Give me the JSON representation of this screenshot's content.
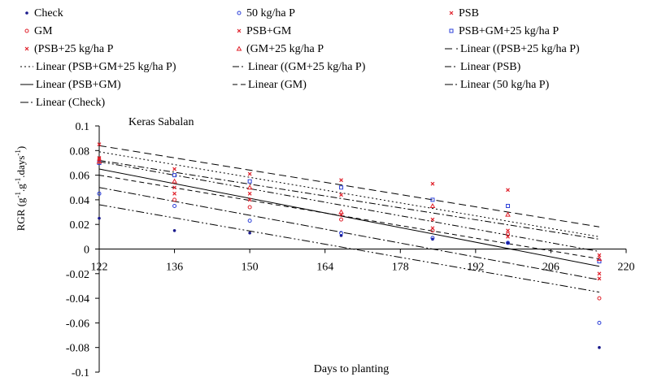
{
  "chart_data": {
    "type": "scatter",
    "title": "Keras Sabalan",
    "xlabel": "Days to planting",
    "ylabel": "RGR (g-1.g-1.days-1)",
    "ylabel_parts": {
      "base": "RGR (g",
      "sup1": "-1",
      "mid1": ".g",
      "sup2": "-1",
      "mid2": ".days",
      "sup3": "-1",
      "end": ")"
    },
    "xlim": [
      122,
      220
    ],
    "ylim": [
      -0.1,
      0.1
    ],
    "xticks": [
      122,
      136,
      150,
      164,
      178,
      192,
      206,
      220
    ],
    "yticks": [
      0.1,
      0.08,
      0.06,
      0.04,
      0.02,
      0,
      -0.02,
      -0.04,
      -0.06,
      -0.08,
      -0.1
    ],
    "ytick_labels": [
      "0.1",
      "0.08",
      "0.06",
      "0.04",
      "0.02",
      "0",
      "-0.02",
      "-0.04",
      "-0.06",
      "-0.08",
      "-0.1"
    ],
    "series": [
      {
        "name": "Check",
        "marker": "dot",
        "color": "#1a1a8c",
        "points": [
          [
            122,
            0.025
          ],
          [
            136,
            0.015
          ],
          [
            150,
            0.013
          ],
          [
            167,
            0.011
          ],
          [
            184,
            0.008
          ],
          [
            198,
            0.005
          ],
          [
            215,
            -0.08
          ]
        ]
      },
      {
        "name": "50 kg/ha P",
        "marker": "circle-open",
        "color": "#2b3fd8",
        "points": [
          [
            122,
            0.045
          ],
          [
            136,
            0.035
          ],
          [
            150,
            0.023
          ],
          [
            167,
            0.013
          ],
          [
            184,
            0.009
          ],
          [
            198,
            0.005
          ],
          [
            215,
            -0.06
          ]
        ]
      },
      {
        "name": "PSB",
        "marker": "x",
        "color": "#e0202a",
        "points": [
          [
            122,
            0.085
          ],
          [
            136,
            0.065
          ],
          [
            150,
            0.061
          ],
          [
            167,
            0.056
          ],
          [
            184,
            0.053
          ],
          [
            198,
            0.048
          ],
          [
            215,
            -0.005
          ]
        ]
      },
      {
        "name": "GM",
        "marker": "circle-open",
        "color": "#e0202a",
        "points": [
          [
            122,
            0.072
          ],
          [
            136,
            0.04
          ],
          [
            150,
            0.034
          ],
          [
            167,
            0.024
          ],
          [
            184,
            0.015
          ],
          [
            198,
            0.012
          ],
          [
            215,
            -0.04
          ]
        ]
      },
      {
        "name": "PSB+GM",
        "marker": "x",
        "color": "#e0202a",
        "points": [
          [
            122,
            0.074
          ],
          [
            136,
            0.045
          ],
          [
            150,
            0.045
          ],
          [
            167,
            0.044
          ],
          [
            184,
            0.024
          ],
          [
            198,
            0.015
          ],
          [
            215,
            -0.024
          ]
        ]
      },
      {
        "name": "PSB+GM+25 kg/ha P",
        "marker": "square-open",
        "color": "#2b3fd8",
        "points": [
          [
            122,
            0.07
          ],
          [
            136,
            0.06
          ],
          [
            150,
            0.055
          ],
          [
            167,
            0.05
          ],
          [
            184,
            0.04
          ],
          [
            198,
            0.035
          ],
          [
            215,
            -0.01
          ]
        ]
      },
      {
        "name": "(PSB+25 kg/ha P",
        "marker": "x",
        "color": "#e0202a",
        "points": [
          [
            122,
            0.073
          ],
          [
            136,
            0.05
          ],
          [
            150,
            0.04
          ],
          [
            167,
            0.028
          ],
          [
            184,
            0.017
          ],
          [
            198,
            0.01
          ],
          [
            215,
            -0.02
          ]
        ]
      },
      {
        "name": "(GM+25 kg/ha P",
        "marker": "triangle-open",
        "color": "#e0202a",
        "points": [
          [
            122,
            0.071
          ],
          [
            136,
            0.055
          ],
          [
            150,
            0.05
          ],
          [
            167,
            0.03
          ],
          [
            184,
            0.035
          ],
          [
            198,
            0.028
          ],
          [
            215,
            -0.008
          ]
        ]
      }
    ],
    "trendlines": [
      {
        "name": "Linear ((PSB+25 kg/ha P)",
        "dash": "9 5",
        "from": [
          122,
          0.084
        ],
        "to": [
          215,
          0.018
        ]
      },
      {
        "name": "Linear (PSB+GM+25 kg/ha P)",
        "dash": "2 3",
        "from": [
          122,
          0.079
        ],
        "to": [
          215,
          0.01
        ]
      },
      {
        "name": "Linear ((GM+25 kg/ha P)",
        "dash": "8 3 2 3",
        "from": [
          122,
          0.072
        ],
        "to": [
          215,
          0.008
        ]
      },
      {
        "name": "Linear (PSB)",
        "dash": "8 3 2 3 2 3",
        "from": [
          122,
          0.071
        ],
        "to": [
          215,
          -0.002
        ]
      },
      {
        "name": "Linear (PSB+GM)",
        "dash": "",
        "from": [
          122,
          0.065
        ],
        "to": [
          215,
          -0.014
        ]
      },
      {
        "name": "Linear (GM)",
        "dash": "6 4",
        "from": [
          122,
          0.06
        ],
        "to": [
          215,
          -0.008
        ]
      },
      {
        "name": "Linear (50 kg/ha P)",
        "dash": "10 3 2 3",
        "from": [
          122,
          0.05
        ],
        "to": [
          215,
          -0.025
        ]
      },
      {
        "name": "Linear (Check)",
        "dash": "10 3 2 3 2 3",
        "from": [
          122,
          0.036
        ],
        "to": [
          215,
          -0.035
        ]
      }
    ],
    "legend": [
      {
        "label": "Check",
        "kind": "marker",
        "marker": "dot",
        "color": "#1a1a8c",
        "col": 0,
        "row": 0
      },
      {
        "label": "50 kg/ha P",
        "kind": "marker",
        "marker": "circle-open",
        "color": "#2b3fd8",
        "col": 1,
        "row": 0
      },
      {
        "label": "PSB",
        "kind": "marker",
        "marker": "x",
        "color": "#e0202a",
        "col": 2,
        "row": 0
      },
      {
        "label": "GM",
        "kind": "marker",
        "marker": "circle-open",
        "color": "#e0202a",
        "col": 0,
        "row": 1
      },
      {
        "label": "PSB+GM",
        "kind": "marker",
        "marker": "x",
        "color": "#e0202a",
        "col": 1,
        "row": 1
      },
      {
        "label": "PSB+GM+25 kg/ha P",
        "kind": "marker",
        "marker": "square-open",
        "color": "#2b3fd8",
        "col": 2,
        "row": 1
      },
      {
        "label": "(PSB+25 kg/ha P",
        "kind": "marker",
        "marker": "x",
        "color": "#e0202a",
        "col": 0,
        "row": 2
      },
      {
        "label": "(GM+25 kg/ha P",
        "kind": "marker",
        "marker": "triangle-open",
        "color": "#e0202a",
        "col": 1,
        "row": 2
      },
      {
        "label": "Linear ((PSB+25 kg/ha P)",
        "kind": "line",
        "dash": "9 5",
        "col": 2,
        "row": 2
      },
      {
        "label": "Linear (PSB+GM+25 kg/ha P)",
        "kind": "line",
        "dash": "2 3",
        "col": 0,
        "row": 3
      },
      {
        "label": "Linear ((GM+25 kg/ha P)",
        "kind": "line",
        "dash": "8 3 2 3",
        "col": 1,
        "row": 3
      },
      {
        "label": "Linear (PSB)",
        "kind": "line",
        "dash": "8 3 2 3 2 3",
        "col": 2,
        "row": 3
      },
      {
        "label": "Linear (PSB+GM)",
        "kind": "line",
        "dash": "",
        "col": 0,
        "row": 4
      },
      {
        "label": "Linear (GM)",
        "kind": "line",
        "dash": "6 4",
        "col": 1,
        "row": 4
      },
      {
        "label": "Linear (50 kg/ha P)",
        "kind": "line",
        "dash": "10 3 2 3",
        "col": 2,
        "row": 4
      },
      {
        "label": "Linear (Check)",
        "kind": "line",
        "dash": "10 3 2 3 2 3",
        "col": 0,
        "row": 5
      }
    ],
    "legend_placement": "top",
    "grid": false
  }
}
